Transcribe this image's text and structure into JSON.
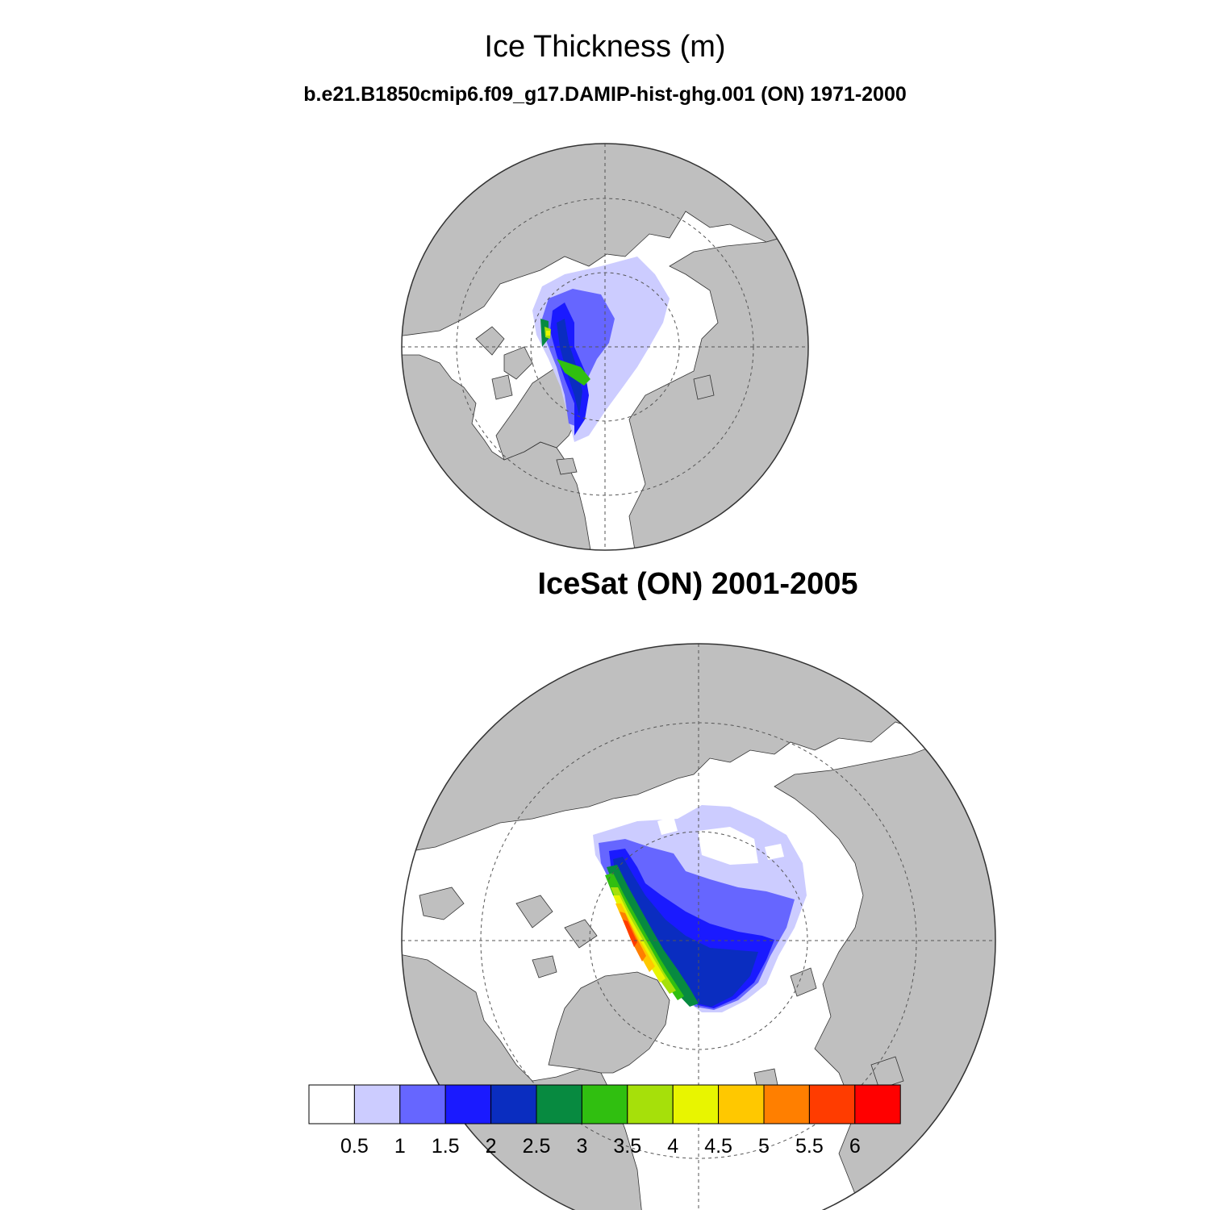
{
  "figure": {
    "title": "Ice Thickness (m)",
    "subtitle": "b.e21.B1850cmip6.f09_g17.DAMIP-hist-ghg.001 (ON) 1971-2000"
  },
  "panels": [
    {
      "id": "model",
      "label": ""
    },
    {
      "id": "obs",
      "label": "IceSat (ON) 2001-2005"
    }
  ],
  "legend": {
    "levels": [
      "0.5",
      "1",
      "1.5",
      "2",
      "2.5",
      "3",
      "3.5",
      "4",
      "4.5",
      "5",
      "5.5",
      "6"
    ],
    "colors": [
      "#ffffff",
      "#ccccff",
      "#6666ff",
      "#1a1aff",
      "#0a2dc0",
      "#078a40",
      "#30bf10",
      "#a6e00a",
      "#e8f500",
      "#ffc800",
      "#ff7f00",
      "#ff3c00",
      "#ff0000"
    ]
  },
  "colors": {
    "land": "#bfbfbf",
    "ocean": "#ffffff",
    "outline": "#333333"
  }
}
